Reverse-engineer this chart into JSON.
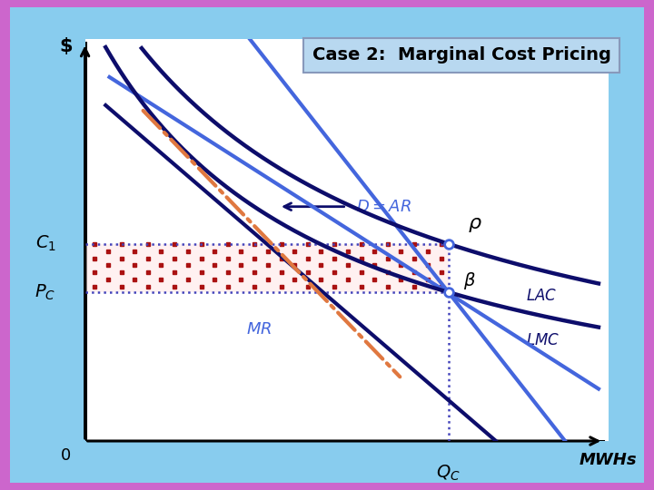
{
  "title": "Case 2:  Marginal Cost Pricing",
  "xlabel": "MWHs",
  "ylabel": "$",
  "title_box_color": "#b8d8f0",
  "title_fontsize": 14,
  "dark_navy": "#0d0d6b",
  "medium_blue": "#4466dd",
  "orange_dash": "#e07840",
  "red_dot": "#aa1111",
  "dot_line_color": "#4444bb",
  "QC": 0.75,
  "C1": 0.53,
  "PC": 0.4,
  "outer_border": "#cc66cc",
  "inner_border": "#88ccee",
  "plot_bg": "#ffffff"
}
